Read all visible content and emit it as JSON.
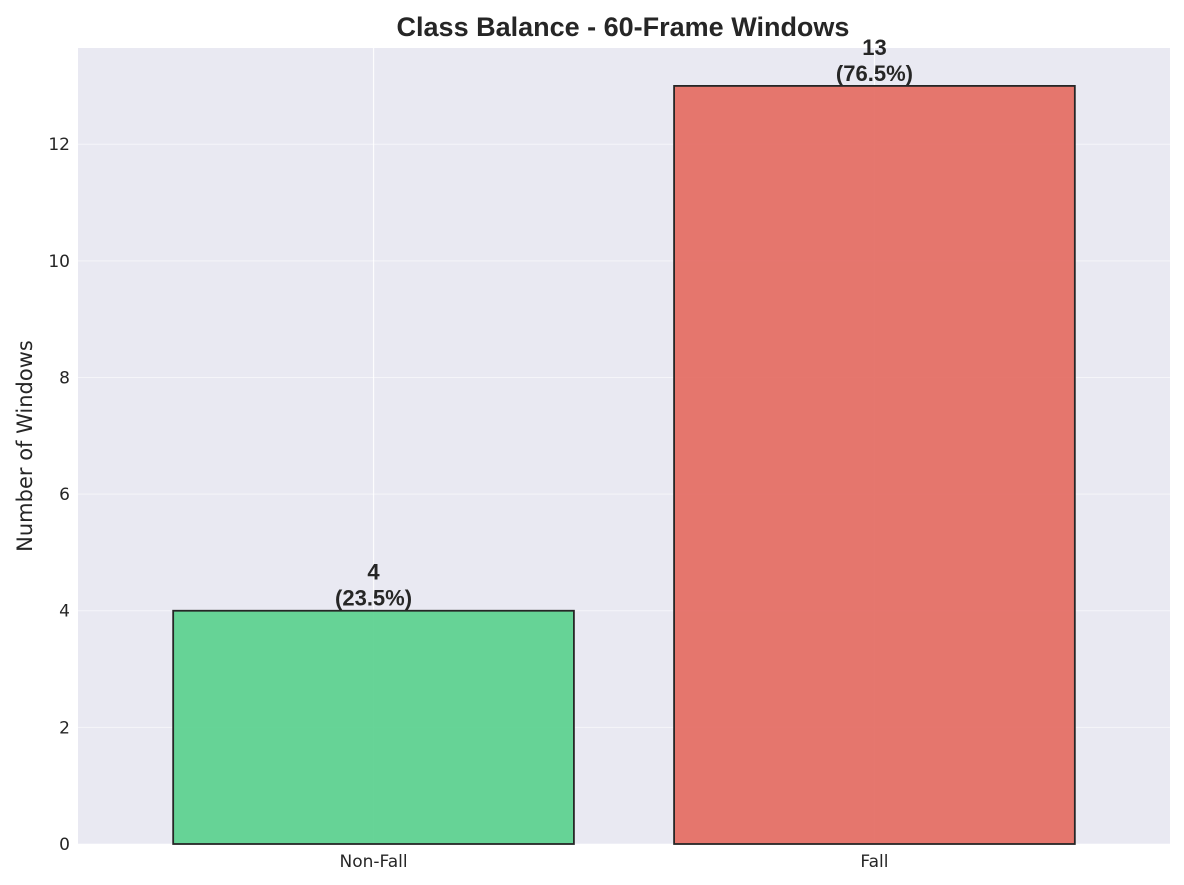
{
  "chart_data": {
    "type": "bar",
    "title": "Class Balance - 60-Frame Windows",
    "xlabel": "",
    "ylabel": "Number of Windows",
    "categories": [
      "Non-Fall",
      "Fall"
    ],
    "values": [
      4,
      13
    ],
    "data_labels": [
      {
        "count": "4",
        "percent": "(23.5%)"
      },
      {
        "count": "13",
        "percent": "(76.5%)"
      }
    ],
    "bar_colors": [
      "#5ad08e",
      "#e46b62"
    ],
    "bar_edge_color": "#262626",
    "ylim": [
      0,
      13.65
    ],
    "yticks": [
      0,
      2,
      4,
      6,
      8,
      10,
      12
    ],
    "grid": true,
    "background": "#e9e9f2"
  }
}
